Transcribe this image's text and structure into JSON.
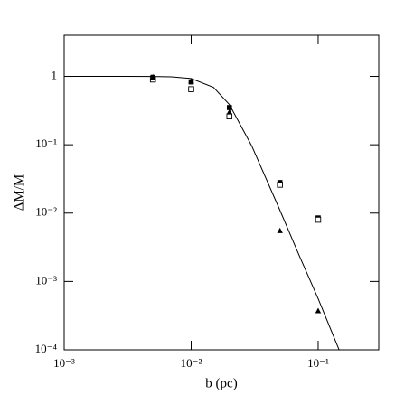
{
  "chart_data": {
    "type": "scatter",
    "x_label": "b (pc)",
    "y_label": "ΔM/M",
    "xscale": "log",
    "yscale": "log",
    "xlim": [
      0.001,
      0.3
    ],
    "ylim": [
      0.0001,
      4
    ],
    "xticks": [
      {
        "value": 0.001,
        "label": "10⁻³"
      },
      {
        "value": 0.01,
        "label": "10⁻²"
      },
      {
        "value": 0.1,
        "label": "10⁻¹"
      }
    ],
    "yticks": [
      {
        "value": 0.0001,
        "label": "10⁻⁴"
      },
      {
        "value": 0.001,
        "label": "10⁻³"
      },
      {
        "value": 0.01,
        "label": "10⁻²"
      },
      {
        "value": 0.1,
        "label": "10⁻¹"
      },
      1
    ],
    "series": [
      {
        "marker": "filled-square",
        "color": "#000000",
        "x": [
          0.005,
          0.01,
          0.02,
          0.05,
          0.1
        ],
        "values": [
          0.97,
          0.83,
          0.35,
          0.028,
          0.0085
        ]
      },
      {
        "marker": "open-square",
        "color": "#000000",
        "x": [
          0.005,
          0.01,
          0.02,
          0.05,
          0.1
        ],
        "values": [
          0.9,
          0.65,
          0.26,
          0.026,
          0.008
        ]
      },
      {
        "marker": "filled-triangle",
        "color": "#000000",
        "x": [
          0.005,
          0.01,
          0.02,
          0.05,
          0.1
        ],
        "values": [
          0.97,
          0.85,
          0.3,
          0.0055,
          0.00037
        ]
      },
      {
        "marker": "line",
        "color": "#000000",
        "x": [
          0.001,
          0.002,
          0.003,
          0.005,
          0.007,
          0.01,
          0.015,
          0.02,
          0.03,
          0.05,
          0.07,
          0.1,
          0.15
        ],
        "values": [
          1,
          1,
          1,
          0.996,
          0.984,
          0.93,
          0.69,
          0.387,
          0.096,
          0.011,
          0.00254,
          0.00056,
          8.9e-05
        ]
      }
    ]
  }
}
